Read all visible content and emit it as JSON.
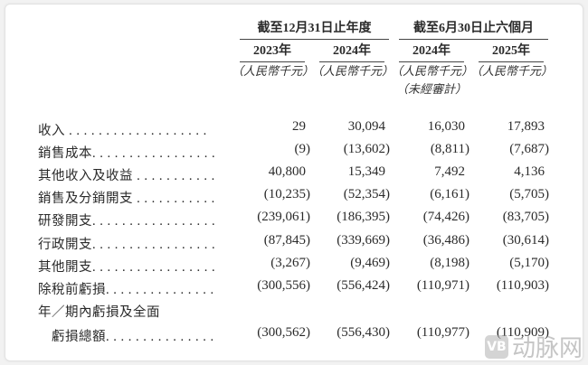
{
  "header": {
    "groups": [
      "截至12月31日止年度",
      "截至6月30日止六個月"
    ],
    "years": [
      "2023年",
      "2024年",
      "2024年",
      "2025年"
    ],
    "unit": "（人民幣千元）",
    "unaudited": "（未經審計）"
  },
  "rows": [
    {
      "label": "收入 . . . . . . . . . . . . . . . . . . .",
      "values": [
        "29",
        "30,094",
        "16,030",
        "17,893"
      ]
    },
    {
      "label": "銷售成本. . . . . . . . . . . . . . . . .",
      "values": [
        "(9)",
        "(13,602)",
        "(8,811)",
        "(7,687)"
      ]
    },
    {
      "label": "其他收入及收益 . . . . . . . . . . .",
      "values": [
        "40,800",
        "15,349",
        "7,492",
        "4,136"
      ]
    },
    {
      "label": "銷售及分銷開支 . . . . . . . . . . .",
      "values": [
        "(10,235)",
        "(52,354)",
        "(6,161)",
        "(5,705)"
      ]
    },
    {
      "label": "研發開支. . . . . . . . . . . . . . . . .",
      "values": [
        "(239,061)",
        "(186,395)",
        "(74,426)",
        "(83,705)"
      ]
    },
    {
      "label": "行政開支. . . . . . . . . . . . . . . . .",
      "values": [
        "(87,845)",
        "(339,669)",
        "(36,486)",
        "(30,614)"
      ]
    },
    {
      "label": "其他開支. . . . . . . . . . . . . . . . .",
      "values": [
        "(3,267)",
        "(9,469)",
        "(8,198)",
        "(5,170)"
      ]
    },
    {
      "label": "除稅前虧損. . . . . . . . . . . . . . .",
      "values": [
        "(300,556)",
        "(556,424)",
        "(110,971)",
        "(110,903)"
      ]
    },
    {
      "label": "年／期內虧損及全面",
      "values": [
        "",
        "",
        "",
        ""
      ]
    },
    {
      "label": "　虧損總額. . . . . . . . . . . . . . .",
      "values": [
        "(300,562)",
        "(556,430)",
        "(110,977)",
        "(110,909)"
      ]
    }
  ],
  "watermark": {
    "logo": "VB",
    "text": "动脉网"
  }
}
